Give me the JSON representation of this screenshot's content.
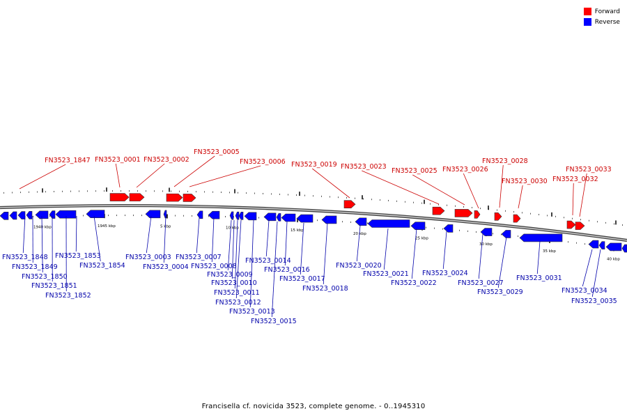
{
  "colors": {
    "forward": "#ff0000",
    "reverse": "#0000ff",
    "forward_label": "#cc0000",
    "reverse_label": "#0000aa",
    "backbone": "#888888"
  },
  "legend": [
    {
      "label": "Forward",
      "color": "#ff0000"
    },
    {
      "label": "Reverse",
      "color": "#0000ff"
    }
  ],
  "caption": "Francisella cf. novicida 3523, complete genome. - 0..1945310",
  "ticks": [
    "1940 kbp",
    "1945 kbp",
    "5 kbp",
    "10 kbp",
    "15 kbp",
    "20 kbp",
    "25 kbp",
    "30 kbp",
    "35 kbp",
    "40 kbp"
  ],
  "forward_genes": [
    "FN3523_1847",
    "FN3523_0001",
    "FN3523_0002",
    "FN3523_0005",
    "FN3523_0006",
    "FN3523_0019",
    "FN3523_0023",
    "FN3523_0025",
    "FN3523_0026",
    "FN3523_0028",
    "FN3523_0030",
    "FN3523_0032",
    "FN3523_0033"
  ],
  "reverse_genes": [
    "FN3523_1848",
    "FN3523_1849",
    "FN3523_1850",
    "FN3523_1851",
    "FN3523_1852",
    "FN3523_1853",
    "FN3523_1854",
    "FN3523_0003",
    "FN3523_0004",
    "FN3523_0007",
    "FN3523_0008",
    "FN3523_0009",
    "FN3523_0010",
    "FN3523_0011",
    "FN3523_0012",
    "FN3523_0013",
    "FN3523_0014",
    "FN3523_0015",
    "FN3523_0016",
    "FN3523_0017",
    "FN3523_0018",
    "FN3523_0020",
    "FN3523_0021",
    "FN3523_0022",
    "FN3523_0024",
    "FN3523_0027",
    "FN3523_0029",
    "FN3523_0031",
    "FN3523_0034",
    "FN3523_0035"
  ]
}
